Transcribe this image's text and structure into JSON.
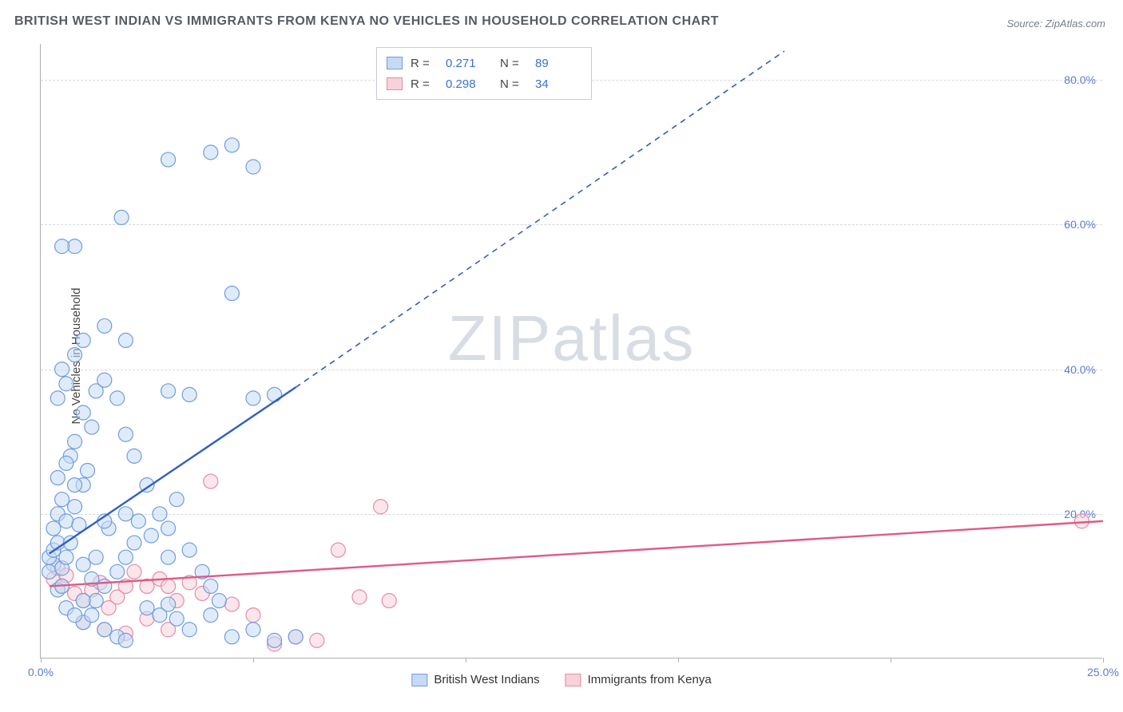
{
  "title": "BRITISH WEST INDIAN VS IMMIGRANTS FROM KENYA NO VEHICLES IN HOUSEHOLD CORRELATION CHART",
  "source": "Source: ZipAtlas.com",
  "ylabel": "No Vehicles in Household",
  "watermark_a": "ZIP",
  "watermark_b": "atlas",
  "chart": {
    "type": "scatter",
    "background_color": "#ffffff",
    "grid_color": "#d5d8dd",
    "axis_color": "#b0b0b0",
    "tick_label_color": "#5b7bd6",
    "tick_fontsize": 14,
    "xlim": [
      0,
      25
    ],
    "ylim": [
      0,
      85
    ],
    "x_ticks": [
      0,
      5,
      10,
      15,
      20,
      25
    ],
    "x_tick_labels": [
      "0.0%",
      "",
      "",
      "",
      "",
      "25.0%"
    ],
    "y_gridlines": [
      20,
      40,
      60,
      80
    ],
    "y_tick_labels": [
      "20.0%",
      "40.0%",
      "60.0%",
      "80.0%"
    ],
    "marker_radius": 9,
    "marker_stroke_width": 1.2,
    "line_width": 2.4
  },
  "series": {
    "a": {
      "label": "British West Indians",
      "fill": "#c7daf4",
      "stroke": "#6f9de0",
      "fill_opacity": 0.55,
      "R": "0.271",
      "N": "89",
      "trend": {
        "solid_start": [
          0.2,
          14.5
        ],
        "solid_end": [
          6.0,
          37.5
        ],
        "dash_end": [
          17.5,
          84.0
        ]
      },
      "points": [
        [
          0.3,
          13.0
        ],
        [
          0.2,
          14.0
        ],
        [
          0.3,
          15.0
        ],
        [
          0.4,
          16.0
        ],
        [
          0.2,
          12.0
        ],
        [
          0.4,
          9.5
        ],
        [
          0.5,
          10.0
        ],
        [
          0.5,
          12.5
        ],
        [
          0.6,
          14.0
        ],
        [
          0.7,
          16.0
        ],
        [
          0.3,
          18.0
        ],
        [
          0.4,
          20.0
        ],
        [
          0.5,
          22.0
        ],
        [
          0.6,
          19.0
        ],
        [
          0.8,
          21.0
        ],
        [
          0.9,
          18.5
        ],
        [
          1.0,
          24.0
        ],
        [
          1.1,
          26.0
        ],
        [
          0.7,
          28.0
        ],
        [
          0.8,
          30.0
        ],
        [
          1.2,
          32.0
        ],
        [
          1.0,
          34.0
        ],
        [
          0.4,
          36.0
        ],
        [
          0.6,
          38.0
        ],
        [
          1.3,
          37.0
        ],
        [
          1.5,
          38.5
        ],
        [
          1.8,
          36.0
        ],
        [
          2.0,
          31.0
        ],
        [
          2.2,
          28.0
        ],
        [
          2.5,
          24.0
        ],
        [
          2.8,
          20.0
        ],
        [
          3.0,
          18.0
        ],
        [
          3.2,
          22.0
        ],
        [
          3.5,
          15.0
        ],
        [
          3.8,
          12.0
        ],
        [
          4.0,
          10.0
        ],
        [
          4.2,
          8.0
        ],
        [
          0.5,
          40.0
        ],
        [
          0.8,
          42.0
        ],
        [
          1.0,
          44.0
        ],
        [
          1.5,
          46.0
        ],
        [
          2.0,
          44.0
        ],
        [
          3.0,
          37.0
        ],
        [
          3.5,
          36.5
        ],
        [
          5.0,
          36.0
        ],
        [
          5.5,
          36.5
        ],
        [
          4.5,
          50.5
        ],
        [
          3.0,
          69.0
        ],
        [
          4.0,
          70.0
        ],
        [
          5.0,
          68.0
        ],
        [
          4.5,
          71.0
        ],
        [
          1.9,
          61.0
        ],
        [
          0.8,
          57.0
        ],
        [
          0.5,
          57.0
        ],
        [
          1.3,
          8.0
        ],
        [
          1.5,
          10.0
        ],
        [
          1.8,
          12.0
        ],
        [
          2.0,
          14.0
        ],
        [
          2.2,
          16.0
        ],
        [
          2.5,
          7.0
        ],
        [
          2.8,
          6.0
        ],
        [
          3.0,
          7.5
        ],
        [
          3.2,
          5.5
        ],
        [
          3.5,
          4.0
        ],
        [
          4.0,
          6.0
        ],
        [
          4.5,
          3.0
        ],
        [
          5.0,
          4.0
        ],
        [
          5.5,
          2.5
        ],
        [
          6.0,
          3.0
        ],
        [
          1.0,
          5.0
        ],
        [
          1.2,
          6.0
        ],
        [
          1.5,
          4.0
        ],
        [
          1.8,
          3.0
        ],
        [
          2.0,
          2.5
        ],
        [
          0.6,
          7.0
        ],
        [
          0.8,
          6.0
        ],
        [
          1.0,
          8.0
        ],
        [
          1.3,
          14.0
        ],
        [
          1.6,
          18.0
        ],
        [
          2.0,
          20.0
        ],
        [
          2.3,
          19.0
        ],
        [
          2.6,
          17.0
        ],
        [
          3.0,
          14.0
        ],
        [
          0.4,
          25.0
        ],
        [
          0.6,
          27.0
        ],
        [
          0.8,
          24.0
        ],
        [
          1.5,
          19.0
        ],
        [
          1.0,
          13.0
        ],
        [
          1.2,
          11.0
        ]
      ]
    },
    "b": {
      "label": "Immigrants from Kenya",
      "fill": "#f6d2db",
      "stroke": "#e88aa6",
      "line_stroke": "#e05a84",
      "fill_opacity": 0.55,
      "R": "0.298",
      "N": "34",
      "trend": {
        "solid_start": [
          0.2,
          10.0
        ],
        "solid_end": [
          25.0,
          19.0
        ],
        "dash_end": null
      },
      "points": [
        [
          0.3,
          11.0
        ],
        [
          0.4,
          12.5
        ],
        [
          0.5,
          10.0
        ],
        [
          0.6,
          11.5
        ],
        [
          0.8,
          9.0
        ],
        [
          1.0,
          8.0
        ],
        [
          1.2,
          9.5
        ],
        [
          1.4,
          10.5
        ],
        [
          1.6,
          7.0
        ],
        [
          1.8,
          8.5
        ],
        [
          2.0,
          10.0
        ],
        [
          2.2,
          12.0
        ],
        [
          2.5,
          10.0
        ],
        [
          2.8,
          11.0
        ],
        [
          3.0,
          10.0
        ],
        [
          3.2,
          8.0
        ],
        [
          3.5,
          10.5
        ],
        [
          3.8,
          9.0
        ],
        [
          4.0,
          24.5
        ],
        [
          4.5,
          7.5
        ],
        [
          5.0,
          6.0
        ],
        [
          5.5,
          2.0
        ],
        [
          6.0,
          3.0
        ],
        [
          6.5,
          2.5
        ],
        [
          7.0,
          15.0
        ],
        [
          7.5,
          8.5
        ],
        [
          8.0,
          21.0
        ],
        [
          8.2,
          8.0
        ],
        [
          1.0,
          5.0
        ],
        [
          1.5,
          4.0
        ],
        [
          2.0,
          3.5
        ],
        [
          2.5,
          5.5
        ],
        [
          3.0,
          4.0
        ],
        [
          24.5,
          19.0
        ]
      ]
    }
  },
  "legend_labels": {
    "R": "R  =",
    "N": "N  ="
  }
}
